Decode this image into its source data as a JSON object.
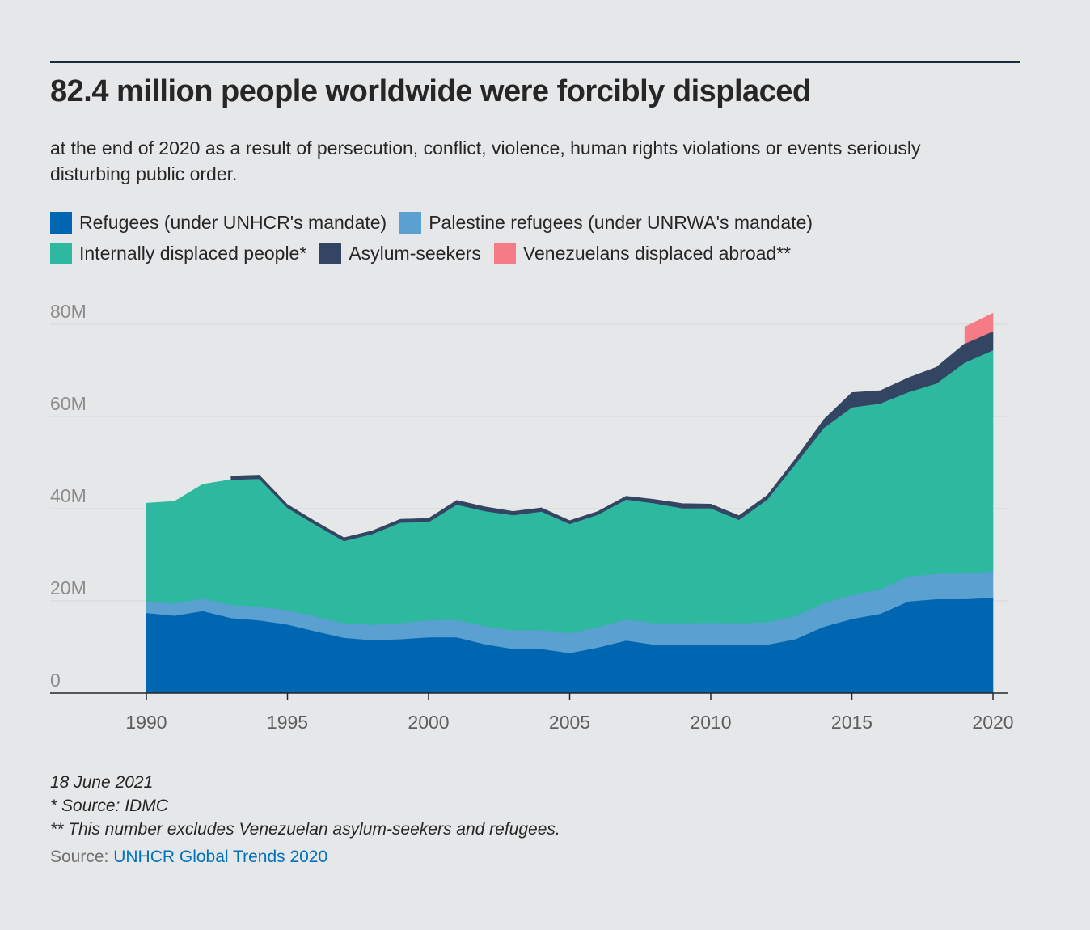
{
  "title": "82.4 million people worldwide were forcibly displaced",
  "subtitle": "at the end of 2020 as a result of persecution, conflict, violence, human rights violations or events seriously disturbing public order.",
  "legend": [
    {
      "label": "Refugees (under UNHCR's mandate)",
      "color": "#0066b2"
    },
    {
      "label": "Palestine refugees (under UNRWA's mandate)",
      "color": "#5aa0d0"
    },
    {
      "label": "Internally displaced people*",
      "color": "#2eb8a0"
    },
    {
      "label": "Asylum-seekers",
      "color": "#344563"
    },
    {
      "label": "Venezuelans displaced abroad**",
      "color": "#f57b87"
    }
  ],
  "notes": {
    "date": "18 June 2021",
    "note1": "* Source: IDMC",
    "note2": "** This number excludes Venezuelan asylum-seekers and refugees."
  },
  "source": {
    "label": "Source:",
    "link_text": "UNHCR Global Trends 2020",
    "link_color": "#0072bc"
  },
  "chart_data": {
    "type": "area",
    "stacked": true,
    "x": [
      1990,
      1991,
      1992,
      1993,
      1994,
      1995,
      1996,
      1997,
      1998,
      1999,
      2000,
      2001,
      2002,
      2003,
      2004,
      2005,
      2006,
      2007,
      2008,
      2009,
      2010,
      2011,
      2012,
      2013,
      2014,
      2015,
      2016,
      2017,
      2018,
      2019,
      2020
    ],
    "x_ticks": [
      "1990",
      "1995",
      "2000",
      "2005",
      "2010",
      "2015",
      "2020"
    ],
    "y_ticks": [
      "0",
      "20M",
      "40M",
      "60M",
      "80M"
    ],
    "ylim": [
      0,
      80
    ],
    "y_unit": "millions",
    "grid": true,
    "series": [
      {
        "name": "Refugees (under UNHCR's mandate)",
        "color": "#0066b2",
        "values": [
          17.4,
          16.8,
          17.8,
          16.3,
          15.8,
          14.9,
          13.4,
          12.0,
          11.5,
          11.7,
          12.1,
          12.1,
          10.6,
          9.6,
          9.6,
          8.7,
          9.9,
          11.4,
          10.5,
          10.4,
          10.5,
          10.4,
          10.5,
          11.7,
          14.4,
          16.1,
          17.2,
          19.9,
          20.4,
          20.4,
          20.7
        ],
        "label_tick": null
      },
      {
        "name": "Palestine refugees (under UNRWA's mandate)",
        "color": "#5aa0d0",
        "values": [
          2.5,
          2.6,
          2.7,
          2.8,
          3.0,
          3.1,
          3.2,
          3.2,
          3.3,
          3.5,
          3.7,
          3.8,
          3.9,
          4.0,
          4.1,
          4.3,
          4.4,
          4.6,
          4.7,
          4.8,
          4.8,
          4.8,
          4.9,
          5.0,
          5.1,
          5.2,
          5.3,
          5.4,
          5.5,
          5.6,
          5.7
        ]
      },
      {
        "name": "Internally displaced people*",
        "color": "#2eb8a0",
        "values": [
          21.3,
          22.2,
          24.8,
          27.2,
          27.7,
          22.2,
          19.9,
          17.8,
          19.7,
          21.8,
          21.3,
          25.0,
          25.0,
          25.0,
          25.7,
          23.7,
          24.4,
          26.0,
          26.0,
          24.9,
          24.8,
          22.4,
          26.6,
          33.0,
          38.0,
          40.7,
          40.3,
          40.0,
          41.3,
          45.7,
          48.0
        ]
      },
      {
        "name": "Asylum-seekers",
        "color": "#344563",
        "values": [
          0,
          0,
          0,
          0.8,
          0.8,
          0.7,
          0.7,
          0.7,
          0.7,
          0.7,
          0.8,
          0.9,
          0.9,
          0.8,
          0.8,
          0.7,
          0.7,
          0.7,
          0.8,
          1.0,
          0.9,
          0.9,
          0.9,
          1.1,
          1.8,
          3.2,
          2.8,
          3.1,
          3.5,
          4.1,
          4.1
        ]
      },
      {
        "name": "Venezuelans displaced abroad**",
        "color": "#f57b87",
        "values": [
          0,
          0,
          0,
          0,
          0,
          0,
          0,
          0,
          0,
          0,
          0,
          0,
          0,
          0,
          0,
          0,
          0,
          0,
          0,
          0,
          0,
          0,
          0,
          0,
          0,
          0,
          0,
          0,
          0,
          3.6,
          3.9
        ]
      }
    ]
  }
}
